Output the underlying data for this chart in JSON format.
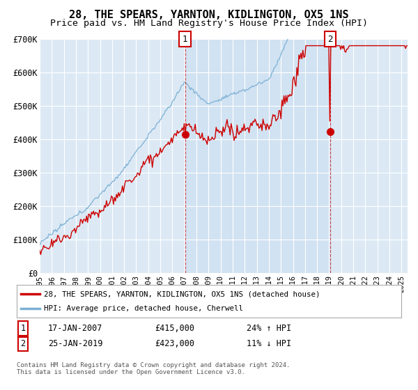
{
  "title": "28, THE SPEARS, YARNTON, KIDLINGTON, OX5 1NS",
  "subtitle": "Price paid vs. HM Land Registry's House Price Index (HPI)",
  "background_color": "#dce9f5",
  "plot_bg_color": "#dce9f5",
  "ylim": [
    0,
    700000
  ],
  "yticks": [
    0,
    100000,
    200000,
    300000,
    400000,
    500000,
    600000,
    700000
  ],
  "ytick_labels": [
    "£0",
    "£100K",
    "£200K",
    "£300K",
    "£400K",
    "£500K",
    "£600K",
    "£700K"
  ],
  "sale1_date": "17-JAN-2007",
  "sale1_price": 415000,
  "sale1_label": "1",
  "sale1_hpi": "24% ↑ HPI",
  "sale1_x": 2007.05,
  "sale2_date": "25-JAN-2019",
  "sale2_price": 423000,
  "sale2_label": "2",
  "sale2_hpi": "11% ↓ HPI",
  "sale2_x": 2019.07,
  "red_line_label": "28, THE SPEARS, YARNTON, KIDLINGTON, OX5 1NS (detached house)",
  "blue_line_label": "HPI: Average price, detached house, Cherwell",
  "red_color": "#cc0000",
  "blue_color": "#7ab0d4",
  "marker_color": "#cc0000",
  "shade_color": "#c8ddf0",
  "footnote": "Contains HM Land Registry data © Crown copyright and database right 2024.\nThis data is licensed under the Open Government Licence v3.0.",
  "title_fontsize": 11,
  "subtitle_fontsize": 9.5,
  "xlim_start": 1995.0,
  "xlim_end": 2025.5
}
